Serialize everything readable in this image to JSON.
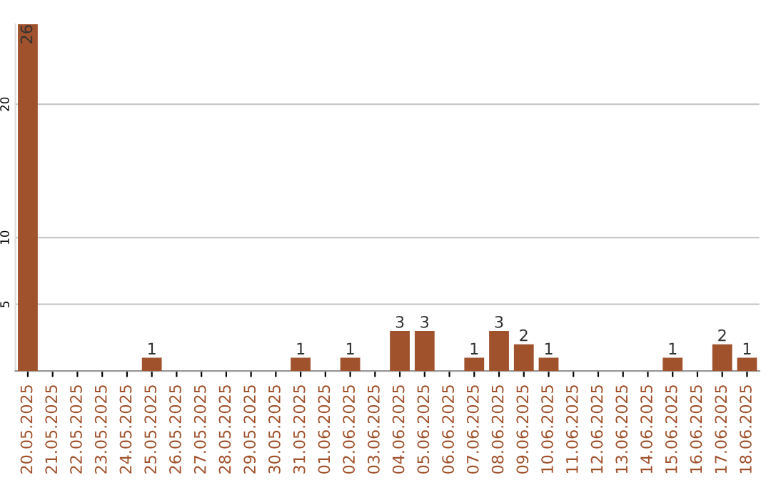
{
  "chart_data": {
    "type": "bar",
    "categories": [
      "20.05.2025",
      "21.05.2025",
      "22.05.2025",
      "23.05.2025",
      "24.05.2025",
      "25.05.2025",
      "26.05.2025",
      "27.05.2025",
      "28.05.2025",
      "29.05.2025",
      "30.05.2025",
      "31.05.2025",
      "01.06.2025",
      "02.06.2025",
      "03.06.2025",
      "04.06.2025",
      "05.06.2025",
      "06.06.2025",
      "07.06.2025",
      "08.06.2025",
      "09.06.2025",
      "10.06.2025",
      "11.06.2025",
      "12.06.2025",
      "13.06.2025",
      "14.06.2025",
      "15.06.2025",
      "16.06.2025",
      "17.06.2025",
      "18.06.2025"
    ],
    "values": [
      26,
      0,
      0,
      0,
      0,
      1,
      0,
      0,
      0,
      0,
      0,
      1,
      0,
      1,
      0,
      3,
      3,
      0,
      1,
      3,
      2,
      1,
      0,
      0,
      0,
      0,
      1,
      0,
      2,
      1
    ],
    "value_labels": [
      "26",
      null,
      null,
      null,
      null,
      "1",
      null,
      null,
      null,
      null,
      null,
      "1",
      null,
      "1",
      null,
      "3",
      "3",
      null,
      "1",
      "3",
      "2",
      "1",
      null,
      null,
      null,
      null,
      "1",
      null,
      "2",
      "1"
    ],
    "color": "#a0522d",
    "ylim": [
      0,
      26
    ],
    "yticks": [
      5,
      10,
      20
    ],
    "grid": "y",
    "legend": false
  }
}
